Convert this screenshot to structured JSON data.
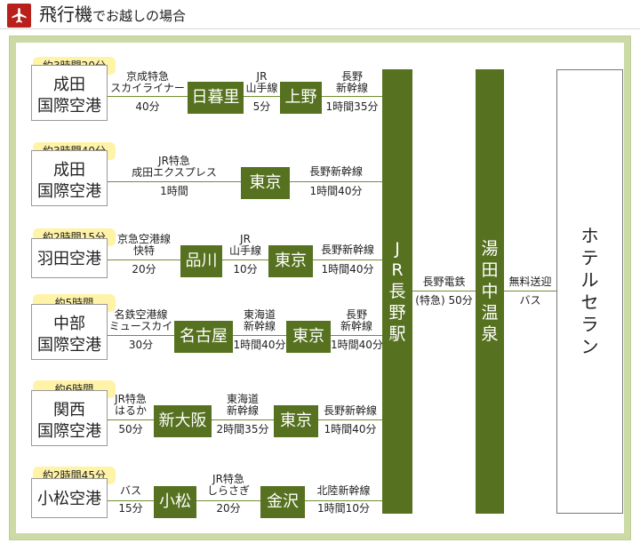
{
  "header": {
    "title_main": "飛行機",
    "title_rest": "でお越しの場合"
  },
  "colors": {
    "accent_red": "#b8211b",
    "green": "#56711f",
    "frame": "#ccdaa6",
    "badge": "#fff3a8"
  },
  "routes": [
    {
      "origin": [
        "成田",
        "国際空港"
      ],
      "time": "約3時間20分",
      "segs": [
        {
          "label": [
            "京成特急",
            "スカイライナー"
          ],
          "dur": "40分"
        },
        {
          "label": [
            "JR",
            "山手線"
          ],
          "dur": "5分"
        },
        {
          "label": [
            "長野",
            "新幹線"
          ],
          "dur": "1時間35分"
        }
      ],
      "stations": [
        "日暮里",
        "上野"
      ]
    },
    {
      "origin": [
        "成田",
        "国際空港"
      ],
      "time": "約3時間40分",
      "segs": [
        {
          "label": [
            "JR特急",
            "成田エクスプレス"
          ],
          "dur": "1時間"
        },
        {
          "label": [
            "長野新幹線"
          ],
          "dur": "1時間40分"
        }
      ],
      "stations": [
        "東京"
      ]
    },
    {
      "origin": [
        "羽田空港"
      ],
      "time": "約2時間15分",
      "segs": [
        {
          "label": [
            "京急空港線",
            "快特"
          ],
          "dur": "20分"
        },
        {
          "label": [
            "JR",
            "山手線"
          ],
          "dur": "10分"
        },
        {
          "label": [
            "長野新幹線"
          ],
          "dur": "1時間40分"
        }
      ],
      "stations": [
        "品川",
        "東京"
      ]
    },
    {
      "origin": [
        "中部",
        "国際空港"
      ],
      "time": "約5時間",
      "segs": [
        {
          "label": [
            "名鉄空港線",
            "ミュースカイ"
          ],
          "dur": "30分"
        },
        {
          "label": [
            "東海道",
            "新幹線"
          ],
          "dur": "1時間40分"
        },
        {
          "label": [
            "長野",
            "新幹線"
          ],
          "dur": "1時間40分"
        }
      ],
      "stations": [
        "名古屋",
        "東京"
      ]
    },
    {
      "origin": [
        "関西",
        "国際空港"
      ],
      "time": "約6時間",
      "segs": [
        {
          "label": [
            "JR特急",
            "はるか"
          ],
          "dur": "50分"
        },
        {
          "label": [
            "東海道",
            "新幹線"
          ],
          "dur": "2時間35分"
        },
        {
          "label": [
            "長野新幹線"
          ],
          "dur": "1時間40分"
        }
      ],
      "stations": [
        "新大阪",
        "東京"
      ]
    },
    {
      "origin": [
        "小松空港"
      ],
      "time": "約2時間45分",
      "segs": [
        {
          "label": [
            "バス"
          ],
          "dur": "15分"
        },
        {
          "label": [
            "JR特急",
            "しらさぎ"
          ],
          "dur": "20分"
        },
        {
          "label": [
            "北陸新幹線"
          ],
          "dur": "1時間10分"
        }
      ],
      "stations": [
        "小松",
        "金沢"
      ]
    }
  ],
  "hub1": {
    "chars": [
      "J",
      "R",
      "長",
      "野",
      "駅"
    ]
  },
  "link1": {
    "label": "長野電鉄",
    "dur": "(特急) 50分"
  },
  "hub2": {
    "chars": [
      "湯",
      "田",
      "中",
      "温",
      "泉"
    ]
  },
  "link2": {
    "label": "無料送迎",
    "dur": "バス"
  },
  "hotel": {
    "chars": [
      "ホ",
      "テ",
      "ル",
      "セ",
      "ラ",
      "ン"
    ]
  }
}
